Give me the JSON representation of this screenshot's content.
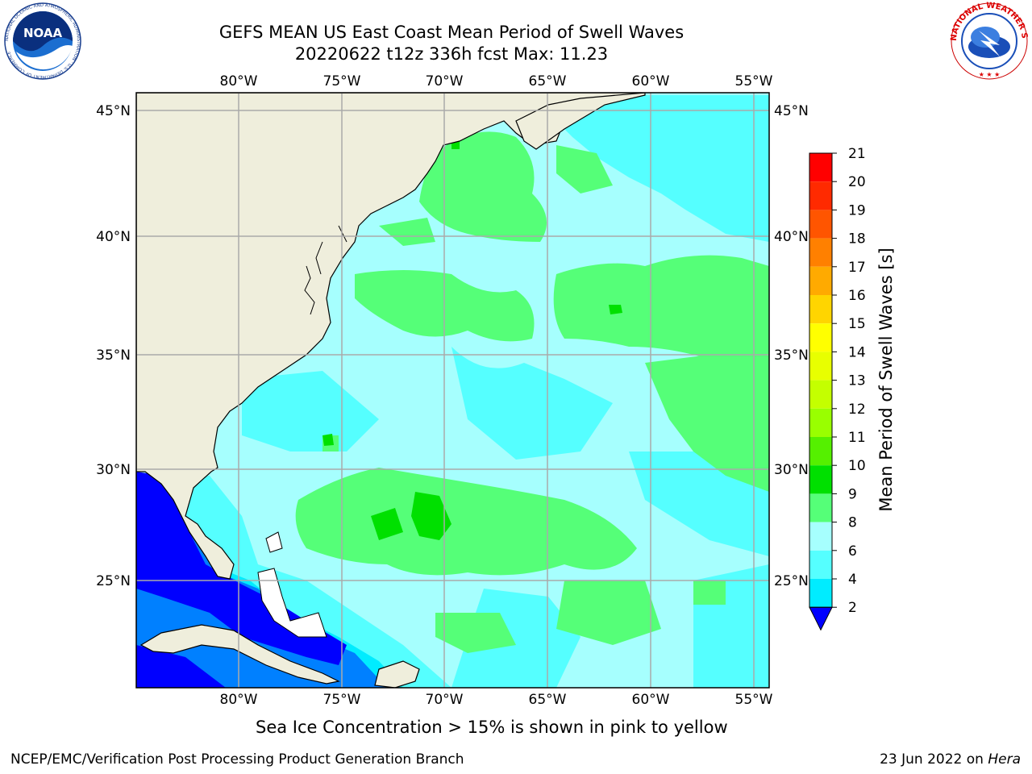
{
  "header": {
    "title_line1": "GEFS MEAN US East Coast Mean Period of Swell Waves",
    "title_line2": "20220622 t12z 336h fcst   Max: 11.23"
  },
  "logos": {
    "left": {
      "name": "NOAA",
      "text": "NOAA",
      "ring_text": "NATIONAL OCEANIC AND ATMOSPHERIC ADMINISTRATION · U.S. DEPARTMENT OF COMMERCE"
    },
    "right": {
      "name": "National Weather Service",
      "ring_text": "NATIONAL WEATHER SERVICE"
    }
  },
  "map": {
    "lon_labels": [
      "80°W",
      "75°W",
      "70°W",
      "65°W",
      "60°W",
      "55°W"
    ],
    "lat_labels": [
      "45°N",
      "40°N",
      "35°N",
      "30°N",
      "25°N"
    ],
    "land_color": "#efeedc",
    "ocean_base_color": "#a6fffe"
  },
  "colorbar": {
    "label": "Mean Period of Swell Waves [s]",
    "ticks": [
      "21",
      "20",
      "19",
      "18",
      "17",
      "16",
      "15",
      "14",
      "13",
      "12",
      "11",
      "10",
      "9",
      "8",
      "6",
      "4",
      "2"
    ],
    "colors": [
      "#ff0000",
      "#ff2a00",
      "#ff5500",
      "#ff8000",
      "#ffaa00",
      "#ffd500",
      "#ffff00",
      "#e8ff00",
      "#c4ff00",
      "#99ff00",
      "#55f000",
      "#00e000",
      "#55ff78",
      "#a6fffe",
      "#55ffff",
      "#00ecff",
      "#0080ff",
      "#0000ff"
    ]
  },
  "note": "Sea Ice Concentration > 15% is shown in pink to yellow",
  "footer": {
    "left": "NCEP/EMC/Verification Post Processing Product Generation Branch",
    "right_date": "23 Jun 2022 on ",
    "right_machine": "Hera"
  }
}
